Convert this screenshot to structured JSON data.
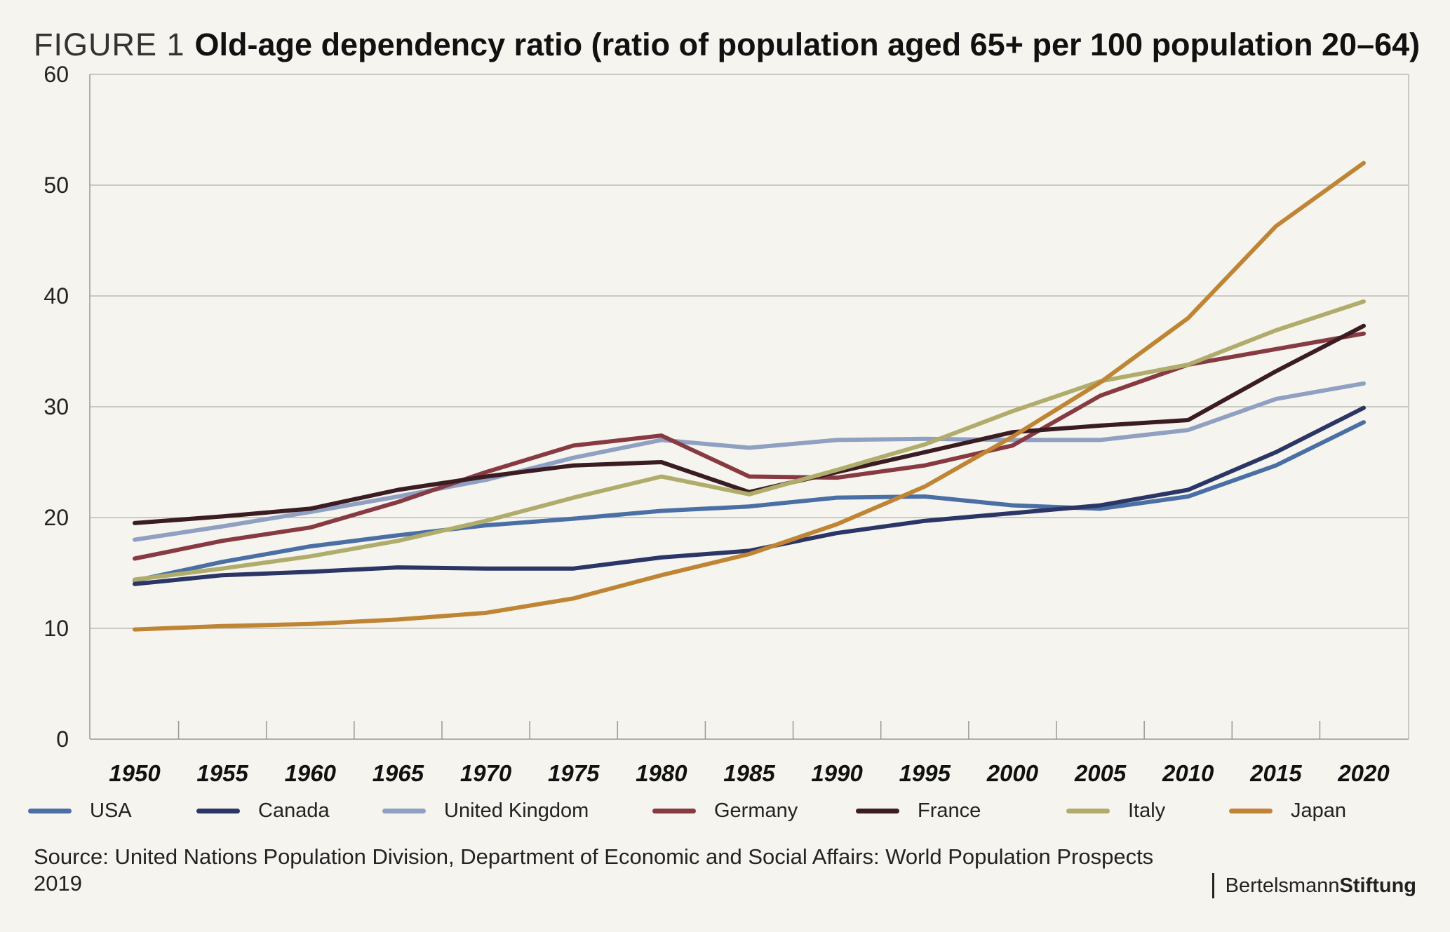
{
  "header": {
    "figure_label": "FIGURE 1",
    "title": "Old-age dependency ratio (ratio of population aged 65+ per 100 population 20–64)"
  },
  "chart_data": {
    "type": "line",
    "title": "Old-age dependency ratio (ratio of population aged 65+ per 100 population 20–64)",
    "xlabel": "",
    "ylabel": "",
    "x": [
      1950,
      1955,
      1960,
      1965,
      1970,
      1975,
      1980,
      1985,
      1990,
      1995,
      2000,
      2005,
      2010,
      2015,
      2020
    ],
    "x_tick_labels": [
      "1950",
      "1955",
      "1960",
      "1965",
      "1970",
      "1975",
      "1980",
      "1985",
      "1990",
      "1995",
      "2000",
      "2005",
      "2010",
      "2015",
      "2020"
    ],
    "y_ticks": [
      0,
      10,
      20,
      30,
      40,
      50,
      60
    ],
    "y_tick_labels": [
      "0",
      "10",
      "20",
      "30",
      "40",
      "50",
      "60"
    ],
    "ylim": [
      0,
      60
    ],
    "grid": "horizontal",
    "legend_position": "bottom",
    "series": [
      {
        "name": "USA",
        "color": "#4a6fa5",
        "values": [
          14.3,
          16.0,
          17.4,
          18.4,
          19.3,
          19.9,
          20.6,
          21.0,
          21.8,
          21.9,
          21.1,
          20.8,
          21.9,
          24.7,
          28.6
        ]
      },
      {
        "name": "Canada",
        "color": "#2b3566",
        "values": [
          14.0,
          14.8,
          15.1,
          15.5,
          15.4,
          15.4,
          16.4,
          17.0,
          18.6,
          19.7,
          20.4,
          21.1,
          22.5,
          25.9,
          29.9
        ]
      },
      {
        "name": "United Kingdom",
        "color": "#8fa0c2",
        "values": [
          18.0,
          19.2,
          20.5,
          21.9,
          23.4,
          25.4,
          27.0,
          26.3,
          27.0,
          27.1,
          27.0,
          27.0,
          27.9,
          30.7,
          32.1
        ]
      },
      {
        "name": "Germany",
        "color": "#883a42",
        "values": [
          16.3,
          17.9,
          19.1,
          21.4,
          24.1,
          26.5,
          27.4,
          23.7,
          23.6,
          24.7,
          26.5,
          31.0,
          33.8,
          35.2,
          36.6
        ]
      },
      {
        "name": "France",
        "color": "#3a1c22",
        "values": [
          19.5,
          20.1,
          20.8,
          22.5,
          23.7,
          24.7,
          25.0,
          22.3,
          24.1,
          25.9,
          27.7,
          28.3,
          28.8,
          33.2,
          37.3
        ]
      },
      {
        "name": "Italy",
        "color": "#b0ad6c",
        "values": [
          14.4,
          15.4,
          16.5,
          17.9,
          19.7,
          21.8,
          23.7,
          22.1,
          24.3,
          26.6,
          29.6,
          32.3,
          33.8,
          36.9,
          39.5
        ]
      },
      {
        "name": "Japan",
        "color": "#bf8535",
        "values": [
          9.9,
          10.2,
          10.4,
          10.8,
          11.4,
          12.7,
          14.8,
          16.7,
          19.4,
          22.8,
          27.3,
          32.2,
          38.0,
          46.3,
          52.0
        ]
      }
    ]
  },
  "footer": {
    "source": "Source: United Nations Population Division, Department of Economic and Social Affairs: World Population Prospects 2019",
    "brand_regular": "Bertelsmann",
    "brand_bold": "Stiftung"
  }
}
